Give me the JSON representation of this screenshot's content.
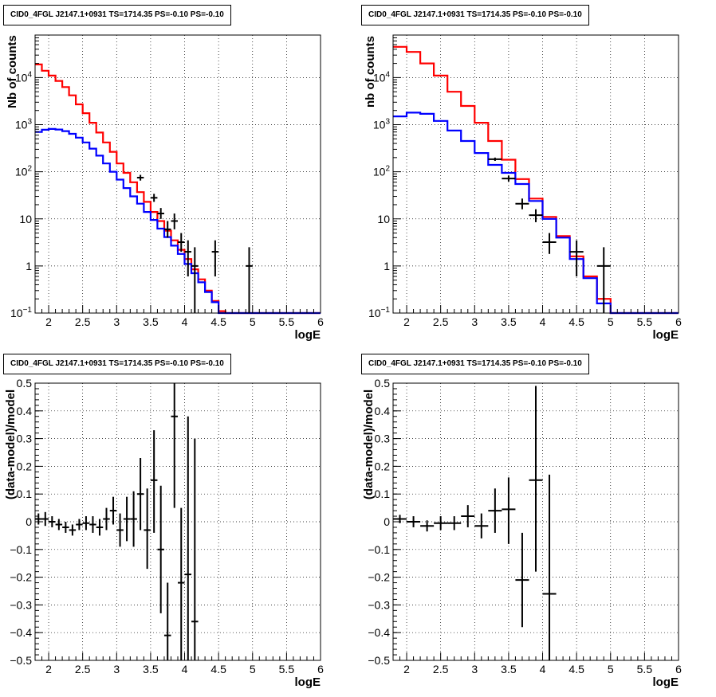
{
  "chart_data": [
    {
      "type": "step-histogram",
      "title": "CID0_4FGL J2147.1+0931 TS=1714.35 PS=-0.10 PS=-0.10",
      "xlabel": "logE",
      "ylabel": "Nb of counts",
      "xlim": [
        1.8,
        6
      ],
      "ylim": [
        0.1,
        80000
      ],
      "yscale": "log",
      "grid": true,
      "xticks": [
        "2",
        "2.5",
        "3",
        "3.5",
        "4",
        "4.5",
        "5",
        "5.5",
        "6"
      ],
      "yticks": [
        {
          "value": 0.1,
          "label": "10⁻¹"
        },
        {
          "value": 1,
          "label": "1"
        },
        {
          "value": 10,
          "label": "10"
        },
        {
          "value": 100,
          "label": "10²"
        },
        {
          "value": 1000,
          "label": "10³"
        },
        {
          "value": 10000,
          "label": "10⁴"
        }
      ],
      "bin_edges": [
        1.8,
        1.9,
        2.0,
        2.1,
        2.2,
        2.3,
        2.4,
        2.5,
        2.6,
        2.7,
        2.8,
        2.9,
        3.0,
        3.1,
        3.2,
        3.3,
        3.4,
        3.5,
        3.6,
        3.7,
        3.8,
        3.9,
        4.0,
        4.1,
        4.2,
        4.3,
        4.4,
        4.5,
        4.6,
        4.7,
        4.8,
        4.9,
        5.0,
        5.1,
        5.2,
        5.3,
        5.4,
        5.5,
        5.6,
        5.7,
        5.8,
        5.9,
        6.0
      ],
      "series": [
        {
          "color": "#ff0000",
          "values": [
            19000,
            14000,
            11000,
            8500,
            6300,
            4200,
            2700,
            1750,
            1100,
            680,
            420,
            265,
            150,
            95,
            60,
            37,
            23,
            14,
            9,
            5.6,
            3.5,
            2.2,
            1.4,
            0.85,
            0.52,
            0.3,
            0.18,
            0.11,
            0.1,
            0.1,
            0.1,
            0.1,
            0.1,
            0.1,
            0.1,
            0.1,
            0.1,
            0.1,
            0.1,
            0.1,
            0.1,
            0.1
          ]
        },
        {
          "color": "#0000ff",
          "values": [
            700,
            780,
            810,
            790,
            730,
            640,
            530,
            420,
            310,
            220,
            150,
            100,
            68,
            45,
            30,
            21,
            14,
            9.5,
            6.2,
            4.1,
            2.7,
            1.8,
            1.1,
            0.7,
            0.45,
            0.28,
            0.17,
            0.1,
            0.1,
            0.1,
            0.1,
            0.1,
            0.1,
            0.1,
            0.1,
            0.1,
            0.1,
            0.1,
            0.1,
            0.1,
            0.1,
            0.1
          ]
        }
      ],
      "points": [
        {
          "x": 3.35,
          "xerr": 0.05,
          "y": 75,
          "ylo": 65,
          "yhi": 86
        },
        {
          "x": 3.55,
          "xerr": 0.05,
          "y": 28,
          "ylo": 23,
          "yhi": 34
        },
        {
          "x": 3.65,
          "xerr": 0.05,
          "y": 13,
          "ylo": 10,
          "yhi": 17
        },
        {
          "x": 3.75,
          "xerr": 0.05,
          "y": 6,
          "ylo": 4,
          "yhi": 9
        },
        {
          "x": 3.85,
          "xerr": 0.05,
          "y": 9,
          "ylo": 6,
          "yhi": 13
        },
        {
          "x": 3.95,
          "xerr": 0.05,
          "y": 3.2,
          "ylo": 2,
          "yhi": 5
        },
        {
          "x": 4.05,
          "xerr": 0.05,
          "y": 2,
          "ylo": 0.6,
          "yhi": 3.5
        },
        {
          "x": 4.15,
          "xerr": 0.05,
          "y": 1,
          "ylo": 0.1,
          "yhi": 2.5
        },
        {
          "x": 4.45,
          "xerr": 0.05,
          "y": 2,
          "ylo": 0.6,
          "yhi": 3.5
        },
        {
          "x": 4.95,
          "xerr": 0.05,
          "y": 1,
          "ylo": 0.1,
          "yhi": 2.5
        }
      ]
    },
    {
      "type": "step-histogram",
      "title": "CID0_4FGL J2147.1+0931 TS=1714.35 PS=-0.10 PS=-0.10",
      "xlabel": "logE",
      "ylabel": "nb of counts",
      "xlim": [
        1.8,
        6
      ],
      "ylim": [
        0.1,
        80000
      ],
      "yscale": "log",
      "grid": true,
      "xticks": [
        "2",
        "2.5",
        "3",
        "3.5",
        "4",
        "4.5",
        "5",
        "5.5",
        "6"
      ],
      "yticks": [
        {
          "value": 0.1,
          "label": "10⁻¹"
        },
        {
          "value": 1,
          "label": "1"
        },
        {
          "value": 10,
          "label": "10"
        },
        {
          "value": 100,
          "label": "10²"
        },
        {
          "value": 1000,
          "label": "10³"
        },
        {
          "value": 10000,
          "label": "10⁴"
        }
      ],
      "bin_edges": [
        1.8,
        2.0,
        2.2,
        2.4,
        2.6,
        2.8,
        3.0,
        3.2,
        3.4,
        3.6,
        3.8,
        4.0,
        4.2,
        4.4,
        4.6,
        4.8,
        5.0,
        5.2,
        5.4,
        5.6,
        5.8,
        6.0
      ],
      "series": [
        {
          "color": "#ff0000",
          "values": [
            45000,
            35000,
            20000,
            11000,
            5000,
            2500,
            1100,
            450,
            180,
            70,
            27,
            11,
            4.3,
            1.6,
            0.6,
            0.2,
            0.1,
            0.1,
            0.1,
            0.1,
            0.1
          ]
        },
        {
          "color": "#0000ff",
          "values": [
            1500,
            1800,
            1700,
            1200,
            750,
            450,
            250,
            140,
            95,
            55,
            24,
            10,
            4.0,
            1.4,
            0.55,
            0.16,
            0.1,
            0.1,
            0.1,
            0.1,
            0.1
          ]
        }
      ],
      "points": [
        {
          "x": 3.3,
          "xerr": 0.1,
          "y": 185,
          "ylo": 170,
          "yhi": 200
        },
        {
          "x": 3.5,
          "xerr": 0.1,
          "y": 72,
          "ylo": 62,
          "yhi": 83
        },
        {
          "x": 3.7,
          "xerr": 0.1,
          "y": 21,
          "ylo": 16,
          "yhi": 27
        },
        {
          "x": 3.9,
          "xerr": 0.1,
          "y": 12,
          "ylo": 8.5,
          "yhi": 16
        },
        {
          "x": 4.1,
          "xerr": 0.1,
          "y": 3.2,
          "ylo": 1.8,
          "yhi": 5
        },
        {
          "x": 4.5,
          "xerr": 0.1,
          "y": 2,
          "ylo": 0.6,
          "yhi": 3.5
        },
        {
          "x": 4.9,
          "xerr": 0.1,
          "y": 1,
          "ylo": 0.1,
          "yhi": 2.5
        }
      ]
    },
    {
      "type": "errorbar",
      "title": "CID0_4FGL J2147.1+0931 TS=1714.35 PS=-0.10 PS=-0.10",
      "xlabel": "logE",
      "ylabel": "(data-model)/model",
      "xlim": [
        1.8,
        6
      ],
      "ylim": [
        -0.5,
        0.5
      ],
      "yscale": "linear",
      "grid": true,
      "xticks": [
        "2",
        "2.5",
        "3",
        "3.5",
        "4",
        "4.5",
        "5",
        "5.5",
        "6"
      ],
      "yticks": [
        {
          "value": -0.5,
          "label": "−0.5"
        },
        {
          "value": -0.4,
          "label": "−0.4"
        },
        {
          "value": -0.3,
          "label": "−0.3"
        },
        {
          "value": -0.2,
          "label": "−0.2"
        },
        {
          "value": -0.1,
          "label": "−0.1"
        },
        {
          "value": 0,
          "label": "0"
        },
        {
          "value": 0.1,
          "label": "0.1"
        },
        {
          "value": 0.2,
          "label": "0.2"
        },
        {
          "value": 0.3,
          "label": "0.3"
        },
        {
          "value": 0.4,
          "label": "0.4"
        },
        {
          "value": 0.5,
          "label": "0.5"
        }
      ],
      "points": [
        {
          "x": 1.85,
          "xerr": 0.05,
          "y": 0.01,
          "ylo": -0.01,
          "yhi": 0.03
        },
        {
          "x": 1.95,
          "xerr": 0.05,
          "y": 0.01,
          "ylo": -0.015,
          "yhi": 0.035
        },
        {
          "x": 2.05,
          "xerr": 0.05,
          "y": 0.0,
          "ylo": -0.02,
          "yhi": 0.02
        },
        {
          "x": 2.15,
          "xerr": 0.05,
          "y": -0.01,
          "ylo": -0.03,
          "yhi": 0.01
        },
        {
          "x": 2.25,
          "xerr": 0.05,
          "y": -0.02,
          "ylo": -0.04,
          "yhi": 0.0
        },
        {
          "x": 2.35,
          "xerr": 0.05,
          "y": -0.03,
          "ylo": -0.05,
          "yhi": -0.01
        },
        {
          "x": 2.45,
          "xerr": 0.05,
          "y": -0.01,
          "ylo": -0.03,
          "yhi": 0.01
        },
        {
          "x": 2.55,
          "xerr": 0.05,
          "y": -0.005,
          "ylo": -0.03,
          "yhi": 0.02
        },
        {
          "x": 2.65,
          "xerr": 0.05,
          "y": -0.01,
          "ylo": -0.04,
          "yhi": 0.02
        },
        {
          "x": 2.75,
          "xerr": 0.05,
          "y": -0.02,
          "ylo": -0.05,
          "yhi": 0.01
        },
        {
          "x": 2.85,
          "xerr": 0.05,
          "y": 0.01,
          "ylo": -0.03,
          "yhi": 0.05
        },
        {
          "x": 2.95,
          "xerr": 0.05,
          "y": 0.04,
          "ylo": -0.01,
          "yhi": 0.09
        },
        {
          "x": 3.05,
          "xerr": 0.05,
          "y": -0.03,
          "ylo": -0.09,
          "yhi": 0.03
        },
        {
          "x": 3.15,
          "xerr": 0.05,
          "y": 0.01,
          "ylo": -0.07,
          "yhi": 0.09
        },
        {
          "x": 3.25,
          "xerr": 0.05,
          "y": 0.01,
          "ylo": -0.09,
          "yhi": 0.11
        },
        {
          "x": 3.35,
          "xerr": 0.05,
          "y": 0.1,
          "ylo": -0.03,
          "yhi": 0.23
        },
        {
          "x": 3.45,
          "xerr": 0.05,
          "y": -0.03,
          "ylo": -0.17,
          "yhi": 0.12
        },
        {
          "x": 3.55,
          "xerr": 0.05,
          "y": 0.15,
          "ylo": -0.04,
          "yhi": 0.33
        },
        {
          "x": 3.65,
          "xerr": 0.05,
          "y": -0.1,
          "ylo": -0.33,
          "yhi": 0.13
        },
        {
          "x": 3.75,
          "xerr": 0.05,
          "y": -0.41,
          "ylo": -0.5,
          "yhi": -0.22
        },
        {
          "x": 3.85,
          "xerr": 0.05,
          "y": 0.38,
          "ylo": 0.05,
          "yhi": 0.5
        },
        {
          "x": 3.95,
          "xerr": 0.05,
          "y": -0.22,
          "ylo": -0.5,
          "yhi": 0.05
        },
        {
          "x": 4.05,
          "xerr": 0.05,
          "y": -0.19,
          "ylo": -0.5,
          "yhi": 0.38
        },
        {
          "x": 4.15,
          "xerr": 0.05,
          "y": -0.36,
          "ylo": -0.5,
          "yhi": 0.3
        }
      ]
    },
    {
      "type": "errorbar",
      "title": "CID0_4FGL J2147.1+0931 TS=1714.35 PS=-0.10 PS=-0.10",
      "xlabel": "logE",
      "ylabel": "(data-model)/model",
      "xlim": [
        1.8,
        6
      ],
      "ylim": [
        -0.5,
        0.5
      ],
      "yscale": "linear",
      "grid": true,
      "xticks": [
        "2",
        "2.5",
        "3",
        "3.5",
        "4",
        "4.5",
        "5",
        "5.5",
        "6"
      ],
      "yticks": [
        {
          "value": -0.5,
          "label": "−0.5"
        },
        {
          "value": -0.4,
          "label": "−0.4"
        },
        {
          "value": -0.3,
          "label": "−0.3"
        },
        {
          "value": -0.2,
          "label": "−0.2"
        },
        {
          "value": -0.1,
          "label": "−0.1"
        },
        {
          "value": 0,
          "label": "0"
        },
        {
          "value": 0.1,
          "label": "0.1"
        },
        {
          "value": 0.2,
          "label": "0.2"
        },
        {
          "value": 0.3,
          "label": "0.3"
        },
        {
          "value": 0.4,
          "label": "0.4"
        },
        {
          "value": 0.5,
          "label": "0.5"
        }
      ],
      "points": [
        {
          "x": 1.9,
          "xerr": 0.1,
          "y": 0.01,
          "ylo": -0.005,
          "yhi": 0.025
        },
        {
          "x": 2.1,
          "xerr": 0.1,
          "y": 0.0,
          "ylo": -0.02,
          "yhi": 0.02
        },
        {
          "x": 2.3,
          "xerr": 0.1,
          "y": -0.015,
          "ylo": -0.035,
          "yhi": 0.005
        },
        {
          "x": 2.5,
          "xerr": 0.1,
          "y": -0.005,
          "ylo": -0.03,
          "yhi": 0.02
        },
        {
          "x": 2.7,
          "xerr": 0.1,
          "y": -0.005,
          "ylo": -0.03,
          "yhi": 0.02
        },
        {
          "x": 2.9,
          "xerr": 0.1,
          "y": 0.02,
          "ylo": -0.02,
          "yhi": 0.06
        },
        {
          "x": 3.1,
          "xerr": 0.1,
          "y": -0.015,
          "ylo": -0.06,
          "yhi": 0.03
        },
        {
          "x": 3.3,
          "xerr": 0.1,
          "y": 0.04,
          "ylo": -0.04,
          "yhi": 0.12
        },
        {
          "x": 3.5,
          "xerr": 0.1,
          "y": 0.045,
          "ylo": -0.08,
          "yhi": 0.16
        },
        {
          "x": 3.7,
          "xerr": 0.1,
          "y": -0.21,
          "ylo": -0.38,
          "yhi": -0.04
        },
        {
          "x": 3.9,
          "xerr": 0.1,
          "y": 0.15,
          "ylo": -0.18,
          "yhi": 0.49
        },
        {
          "x": 4.1,
          "xerr": 0.1,
          "y": -0.26,
          "ylo": -0.5,
          "yhi": 0.17
        }
      ]
    }
  ]
}
